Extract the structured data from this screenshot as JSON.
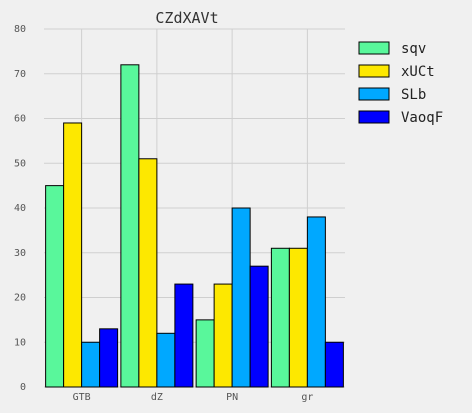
{
  "chart_data": {
    "type": "bar",
    "title": "CZdXAVt",
    "xlabel": "",
    "ylabel": "",
    "categories": [
      "GTB",
      "dZ",
      "PN",
      "gr"
    ],
    "ylim": [
      0,
      80
    ],
    "yticks": [
      0,
      10,
      20,
      30,
      40,
      50,
      60,
      70,
      80
    ],
    "grid": true,
    "legend_position": "top-right",
    "series": [
      {
        "name": "sqv",
        "color": "#59f79b",
        "values": [
          45,
          72,
          15,
          31
        ]
      },
      {
        "name": "xUCt",
        "color": "#fde800",
        "values": [
          59,
          51,
          23,
          31
        ]
      },
      {
        "name": "SLb",
        "color": "#00a8ff",
        "values": [
          10,
          12,
          40,
          38
        ]
      },
      {
        "name": "VaoqF",
        "color": "#0000ff",
        "values": [
          13,
          23,
          27,
          10
        ]
      }
    ]
  }
}
